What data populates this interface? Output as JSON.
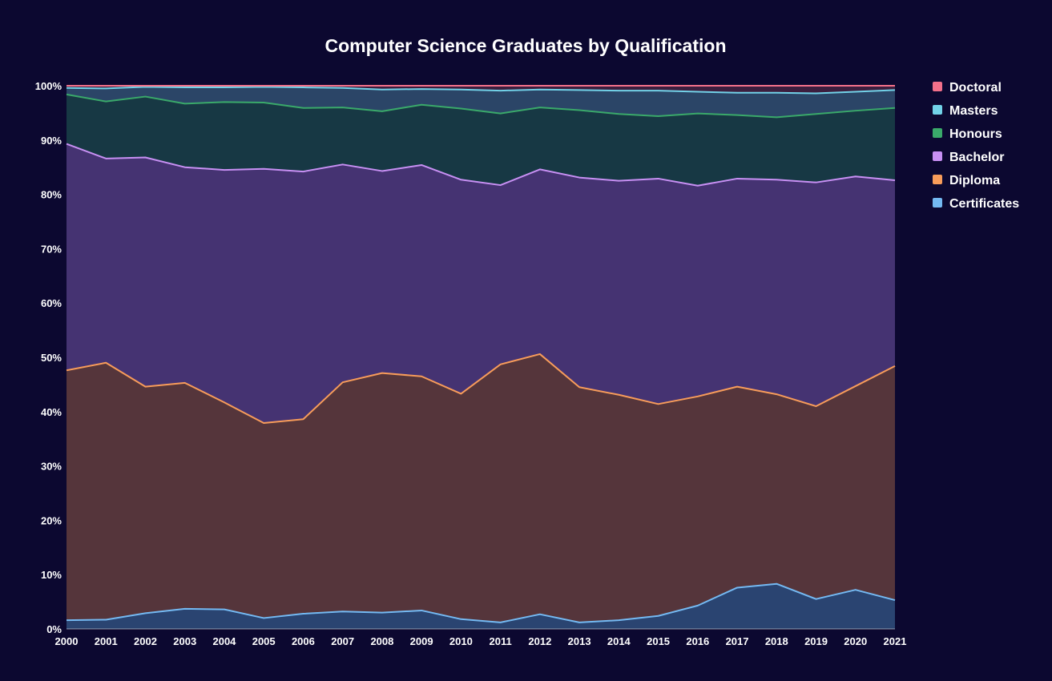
{
  "chart_data": {
    "type": "area",
    "stacked": true,
    "normalized": true,
    "title": "Computer Science Graduates by Qualification",
    "xlabel": "",
    "ylabel": "",
    "ylim": [
      0,
      100
    ],
    "y_ticks": [
      "0%",
      "10%",
      "20%",
      "30%",
      "40%",
      "50%",
      "60%",
      "70%",
      "80%",
      "90%",
      "100%"
    ],
    "grid": true,
    "legend_position": "right",
    "categories": [
      "2000",
      "2001",
      "2002",
      "2003",
      "2004",
      "2005",
      "2006",
      "2007",
      "2008",
      "2009",
      "2010",
      "2011",
      "2012",
      "2013",
      "2014",
      "2015",
      "2016",
      "2017",
      "2018",
      "2019",
      "2020",
      "2021"
    ],
    "series": [
      {
        "name": "Certificates",
        "line_color": "#74b9f2",
        "fill_color": "#2a4471",
        "cumulative_top": [
          1.6,
          1.7,
          2.9,
          3.7,
          3.6,
          2.0,
          2.8,
          3.2,
          3.0,
          3.4,
          1.8,
          1.2,
          2.7,
          1.2,
          1.6,
          2.4,
          4.3,
          7.6,
          8.3,
          5.5,
          7.2,
          5.3
        ]
      },
      {
        "name": "Diploma",
        "line_color": "#f89c5a",
        "fill_color": "#55353b",
        "cumulative_top": [
          47.6,
          49.0,
          44.6,
          45.3,
          41.7,
          37.9,
          38.6,
          45.4,
          47.1,
          46.5,
          43.3,
          48.7,
          50.6,
          44.5,
          43.1,
          41.4,
          42.8,
          44.6,
          43.2,
          41.0,
          44.7,
          48.4
        ]
      },
      {
        "name": "Bachelor",
        "line_color": "#c890f4",
        "fill_color": "#453372",
        "cumulative_top": [
          89.3,
          86.6,
          86.8,
          85.0,
          84.5,
          84.7,
          84.2,
          85.5,
          84.3,
          85.4,
          82.7,
          81.7,
          84.6,
          83.1,
          82.5,
          82.9,
          81.6,
          82.9,
          82.7,
          82.2,
          83.3,
          82.6
        ]
      },
      {
        "name": "Honours",
        "line_color": "#3aa96a",
        "fill_color": "#173844",
        "cumulative_top": [
          98.4,
          97.1,
          98.0,
          96.7,
          97.0,
          96.9,
          95.9,
          96.0,
          95.3,
          96.5,
          95.8,
          94.9,
          96.0,
          95.5,
          94.8,
          94.4,
          94.9,
          94.6,
          94.2,
          94.8,
          95.4,
          95.9
        ]
      },
      {
        "name": "Masters",
        "line_color": "#72d2e8",
        "fill_color": "#2b4567",
        "cumulative_top": [
          99.6,
          99.5,
          99.8,
          99.7,
          99.7,
          99.8,
          99.7,
          99.6,
          99.3,
          99.4,
          99.3,
          99.1,
          99.3,
          99.2,
          99.1,
          99.1,
          98.9,
          98.7,
          98.7,
          98.6,
          98.9,
          99.2
        ]
      },
      {
        "name": "Doctoral",
        "line_color": "#f3708a",
        "fill_color": "#3c1e3e",
        "cumulative_top": [
          100,
          100,
          100,
          100,
          100,
          100,
          100,
          100,
          100,
          100,
          100,
          100,
          100,
          100,
          100,
          100,
          100,
          100,
          100,
          100,
          100,
          100
        ]
      }
    ]
  }
}
